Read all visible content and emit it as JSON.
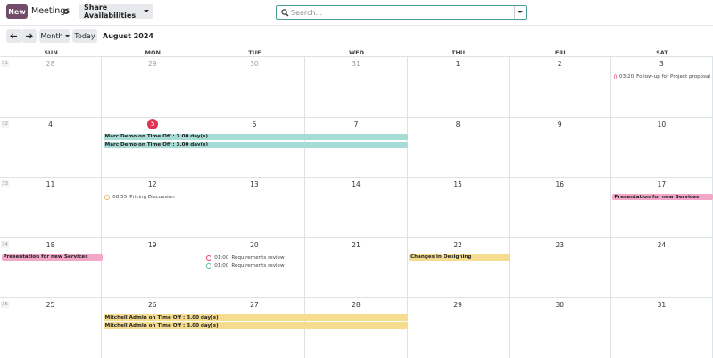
{
  "header": {
    "new_button": "New",
    "app_title": "Meetings",
    "share_button": "Share Availabilities",
    "search_placeholder": "Search..."
  },
  "toolbar": {
    "view_button": "Month",
    "today_button": "Today",
    "period": "August 2024"
  },
  "calendar": {
    "today": 5,
    "weekdays": [
      "SUN",
      "MON",
      "TUE",
      "WED",
      "THU",
      "FRI",
      "SAT"
    ],
    "weeks": [
      {
        "number": 31,
        "days": [
          28,
          29,
          30,
          31,
          1,
          2,
          3
        ]
      },
      {
        "number": 32,
        "days": [
          4,
          5,
          6,
          7,
          8,
          9,
          10
        ]
      },
      {
        "number": 33,
        "days": [
          11,
          12,
          13,
          14,
          15,
          16,
          17
        ]
      },
      {
        "number": 34,
        "days": [
          18,
          19,
          20,
          21,
          22,
          23,
          24
        ]
      },
      {
        "number": 35,
        "days": [
          25,
          26,
          27,
          28,
          29,
          30,
          31
        ]
      }
    ],
    "events": [
      {
        "time": "03:20",
        "title": "Follow-up for Project proposal",
        "start": 3,
        "end": 3,
        "style": "dot",
        "color": "#e88aa0"
      },
      {
        "title": "Marc Demo on Time Off : 3.00 day(s)",
        "start": 5,
        "end": 7,
        "style": "bar",
        "color": "#a6dbd6"
      },
      {
        "title": "Marc Demo on Time Off : 3.00 day(s)",
        "start": 5,
        "end": 7,
        "style": "bar",
        "color": "#a6dbd6"
      },
      {
        "time": "08:55",
        "title": "Pricing Discussion",
        "start": 12,
        "end": 12,
        "style": "dot",
        "color": "#f0b15a"
      },
      {
        "title": "Presentation for new Services",
        "start": 17,
        "end": 17,
        "style": "bar",
        "color": "#f4a6c8"
      },
      {
        "title": "Presentation for new Services",
        "start": 18,
        "end": 18,
        "style": "bar",
        "color": "#f4a6c8"
      },
      {
        "time": "01:00",
        "title": "Requirements review",
        "start": 20,
        "end": 20,
        "style": "dot",
        "color": "#e0465a"
      },
      {
        "time": "01:00",
        "title": "Requirements review",
        "start": 20,
        "end": 20,
        "style": "dot",
        "color": "#5cb8ae"
      },
      {
        "title": "Changes in Designing",
        "start": 22,
        "end": 22,
        "style": "bar",
        "color": "#f5dc8f"
      },
      {
        "title": "Mitchell Admin on Time Off : 3.00 day(s)",
        "start": 26,
        "end": 28,
        "style": "bar",
        "color": "#f5dc8f"
      },
      {
        "title": "Mitchell Admin on Time Off : 3.00 day(s)",
        "start": 26,
        "end": 28,
        "style": "bar",
        "color": "#f5dc8f"
      }
    ]
  }
}
